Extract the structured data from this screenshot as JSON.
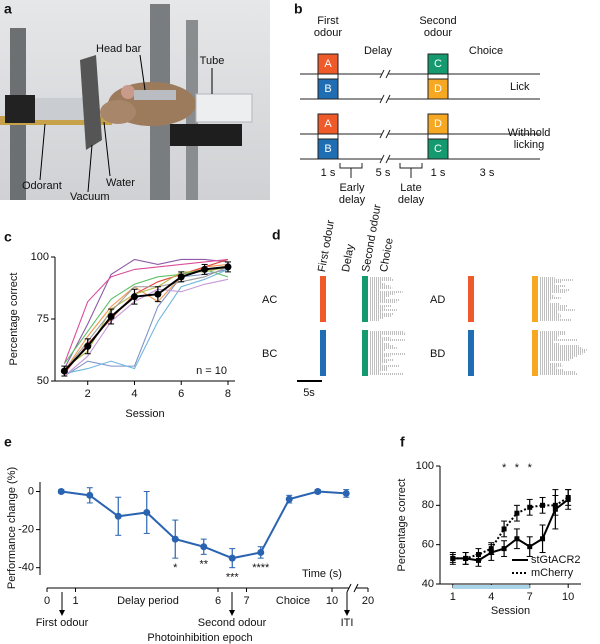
{
  "panel_labels": [
    "a",
    "b",
    "c",
    "d",
    "e",
    "f"
  ],
  "colors": {
    "A": "#ee5a2a",
    "B": "#1f6db3",
    "C": "#149a6e",
    "D": "#f6a823"
  },
  "panel_a": {
    "labels": [
      "Head bar",
      "Tube",
      "Odorant",
      "Vacuum",
      "Water"
    ]
  },
  "panel_b": {
    "headings": [
      "First odour",
      "Delay",
      "Second odour",
      "Choice"
    ],
    "rows": [
      [
        "A",
        "C"
      ],
      [
        "B",
        "D"
      ],
      [
        "A",
        "D"
      ],
      [
        "B",
        "C"
      ]
    ],
    "outcomes": [
      "Lick",
      "Withhold licking"
    ],
    "durations": [
      "1 s",
      "5 s",
      "1 s",
      "3 s"
    ],
    "epochs": [
      "Early delay",
      "Late delay"
    ]
  },
  "panel_d": {
    "headings": [
      "First odour",
      "Delay",
      "Second odour",
      "Choice"
    ],
    "conditions": [
      "AC",
      "BC",
      "AD",
      "BD"
    ],
    "scale_bar": "5s"
  },
  "chart_data": [
    {
      "type": "line",
      "xlabel": "Session",
      "ylabel": "Percentage correct",
      "annotation": "n = 10",
      "x": [
        1,
        2,
        3,
        4,
        5,
        6,
        7,
        8
      ],
      "xlim": [
        0.6,
        8.3
      ],
      "xticks": [
        2,
        4,
        6,
        8
      ],
      "ylim": [
        50,
        100
      ],
      "yticks": [
        50,
        75,
        100
      ],
      "series": [
        {
          "color": "#8e5ba8",
          "values": [
            55,
            73,
            93,
            99,
            97,
            99,
            99,
            98
          ]
        },
        {
          "color": "#d94f9b",
          "values": [
            57,
            82,
            92,
            95,
            96,
            97,
            98,
            99
          ]
        },
        {
          "color": "#7d93c7",
          "values": [
            52,
            58,
            56,
            56,
            80,
            92,
            93,
            95
          ]
        },
        {
          "color": "#6fb6e0",
          "values": [
            53,
            55,
            58,
            55,
            74,
            88,
            91,
            95
          ]
        },
        {
          "color": "#f29a52",
          "values": [
            54,
            68,
            80,
            88,
            82,
            92,
            96,
            97
          ]
        },
        {
          "color": "#e0433c",
          "values": [
            53,
            65,
            75,
            85,
            90,
            93,
            96,
            99
          ]
        },
        {
          "color": "#5dbf6a",
          "values": [
            57,
            70,
            83,
            89,
            92,
            93,
            95,
            92
          ]
        },
        {
          "color": "#b5b84a",
          "values": [
            55,
            62,
            79,
            85,
            88,
            94,
            94,
            96
          ]
        },
        {
          "color": "#c79ad6",
          "values": [
            52,
            60,
            74,
            82,
            87,
            86,
            89,
            91
          ]
        },
        {
          "color": "#9a9a9a",
          "values": [
            54,
            66,
            78,
            88,
            88,
            90,
            92,
            96
          ]
        },
        {
          "color": "#000000",
          "marker": "circle",
          "values": [
            54,
            64,
            76,
            84,
            85,
            92,
            95,
            96
          ],
          "errors": [
            2,
            3,
            3,
            3,
            3,
            2,
            2,
            2
          ]
        }
      ]
    },
    {
      "type": "line",
      "xlabel": "Photoinhibition epoch",
      "ylabel": "Performance change (%)",
      "axis_title": "Time (s)",
      "axis_break": true,
      "epochs": [
        "Delay period",
        "Choice"
      ],
      "events": [
        "First odour",
        "Second odour",
        "ITI"
      ],
      "x": [
        0.5,
        1.5,
        2.5,
        3.5,
        4.5,
        5.5,
        6.5,
        7.5,
        8.5,
        9.5,
        10.5
      ],
      "xlim": [
        0,
        20
      ],
      "xticks": [
        0,
        1,
        6,
        7,
        10,
        20
      ],
      "ylim": [
        -47,
        5
      ],
      "yticks": [
        -40,
        -20,
        0
      ],
      "series": [
        {
          "color": "#2a64b0",
          "marker": "circle",
          "values": [
            0,
            -2,
            -13,
            -11,
            -25,
            -29,
            -35,
            -32,
            -4,
            0,
            -1
          ],
          "errors": [
            1,
            4,
            10,
            11,
            10,
            4,
            5,
            3,
            2,
            1,
            2
          ],
          "significance": [
            null,
            null,
            null,
            null,
            "*",
            "**",
            "***",
            "****",
            null,
            null,
            null
          ]
        }
      ]
    },
    {
      "type": "line",
      "xlabel": "Session",
      "ylabel": "Percentage correct",
      "x": [
        1,
        2,
        3,
        4,
        5,
        6,
        7,
        8,
        9,
        10
      ],
      "xlim": [
        0,
        11
      ],
      "xticks": [
        1,
        4,
        7,
        10
      ],
      "ylim": [
        40,
        100
      ],
      "yticks": [
        40,
        60,
        80,
        100
      ],
      "shaded_span": [
        1,
        7
      ],
      "shaded_color": "#a9d4ea",
      "legend": "lower right",
      "significance": [
        null,
        null,
        null,
        null,
        "*",
        "*",
        "*",
        null,
        null,
        null
      ],
      "series": [
        {
          "name": "stGtACR2",
          "color": "#000000",
          "dash": "solid",
          "marker": "square",
          "values": [
            53,
            53,
            52,
            56,
            58,
            63,
            59,
            63,
            78,
            83
          ],
          "errors": [
            3,
            3,
            3,
            4,
            4,
            5,
            5,
            7,
            10,
            5
          ]
        },
        {
          "name": "mCherry",
          "color": "#000000",
          "dash": "dotted",
          "marker": "square",
          "values": [
            53,
            53,
            55,
            58,
            68,
            76,
            79,
            80,
            80,
            84
          ],
          "errors": [
            2,
            3,
            3,
            3,
            4,
            4,
            4,
            4,
            5,
            4
          ]
        }
      ]
    }
  ]
}
